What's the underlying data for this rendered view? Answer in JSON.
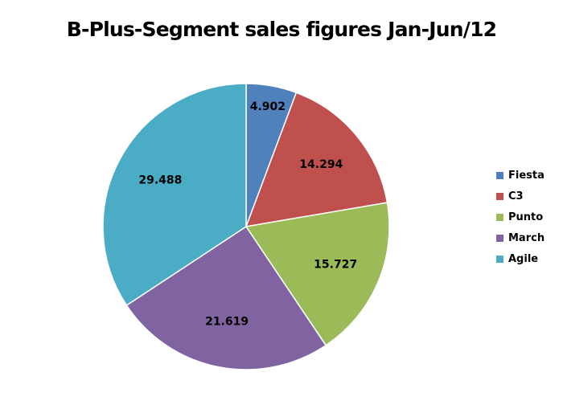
{
  "chart_data": {
    "type": "pie",
    "title": "B-Plus-Segment sales figures Jan-Jun/12",
    "categories": [
      "Fiesta",
      "C3",
      "Punto",
      "March",
      "Agile"
    ],
    "values": [
      4902,
      14294,
      15727,
      21619,
      29488
    ],
    "value_labels": [
      "4.902",
      "14.294",
      "15.727",
      "21.619",
      "29.488"
    ],
    "colors": [
      "#4F81BD",
      "#C0504D",
      "#9BBB59",
      "#8064A2",
      "#4BACC6"
    ],
    "legend_position": "right"
  }
}
